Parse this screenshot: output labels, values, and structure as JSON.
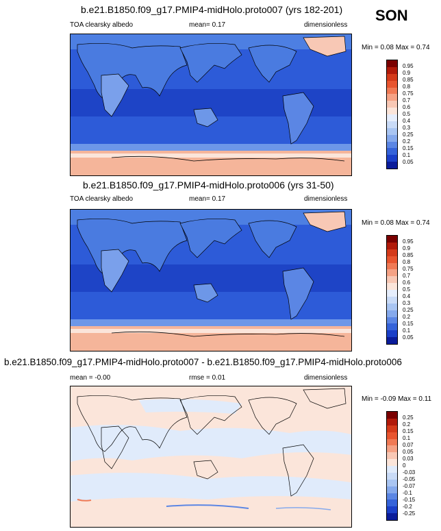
{
  "season": "SON",
  "panels": [
    {
      "title": "b.e21.B1850.f09_g17.PMIP4-midHolo.proto007 (yrs 182-201)",
      "left_label": "TOA clearsky albedo",
      "center_label": "mean=  0.17",
      "right_label": "dimensionless",
      "minmax": "Min =  0.08 Max =  0.74",
      "colorbar_labels": [
        "0.95",
        "0.9",
        "0.85",
        "0.8",
        "0.75",
        "0.7",
        "0.6",
        "0.5",
        "0.4",
        "0.3",
        "0.25",
        "0.2",
        "0.15",
        "0.1",
        "0.05"
      ]
    },
    {
      "title": "b.e21.B1850.f09_g17.PMIP4-midHolo.proto006 (yrs 31-50)",
      "left_label": "TOA clearsky albedo",
      "center_label": "mean=  0.17",
      "right_label": "dimensionless",
      "minmax": "Min =  0.08 Max =  0.74",
      "colorbar_labels": [
        "0.95",
        "0.9",
        "0.85",
        "0.8",
        "0.75",
        "0.7",
        "0.6",
        "0.5",
        "0.4",
        "0.3",
        "0.25",
        "0.2",
        "0.15",
        "0.1",
        "0.05"
      ]
    },
    {
      "title": "b.e21.B1850.f09_g17.PMIP4-midHolo.proto007 - b.e21.B1850.f09_g17.PMIP4-midHolo.proto006",
      "left_label": "mean =  -0.00",
      "center_label": "rmse =  0.01",
      "right_label": "dimensionless",
      "minmax": "Min =  -0.09 Max =  0.11",
      "colorbar_labels": [
        "0.25",
        "0.2",
        "0.15",
        "0.1",
        "0.07",
        "0.05",
        "0.03",
        "0",
        "-0.03",
        "-0.05",
        "-0.07",
        "-0.1",
        "-0.15",
        "-0.2",
        "-0.25"
      ]
    }
  ],
  "colors": {
    "abs_scale": [
      "#7a0000",
      "#b11a0a",
      "#d43a1a",
      "#e8552f",
      "#f07a55",
      "#f5a285",
      "#f8c8b5",
      "#fbe5da",
      "#e6eefc",
      "#c9dbf7",
      "#a9c5f2",
      "#85a9ec",
      "#5b86e4",
      "#3563d9",
      "#1a3fc8",
      "#0a1c9a"
    ],
    "diff_scale": [
      "#7a0000",
      "#b11a0a",
      "#d43a1a",
      "#e8552f",
      "#f07a55",
      "#f5a285",
      "#f8c8b5",
      "#fbe5da",
      "#e0ebfb",
      "#c9dbf7",
      "#a9c5f2",
      "#85a9ec",
      "#5b86e4",
      "#3563d9",
      "#1a3fc8",
      "#0a1c9a"
    ]
  }
}
